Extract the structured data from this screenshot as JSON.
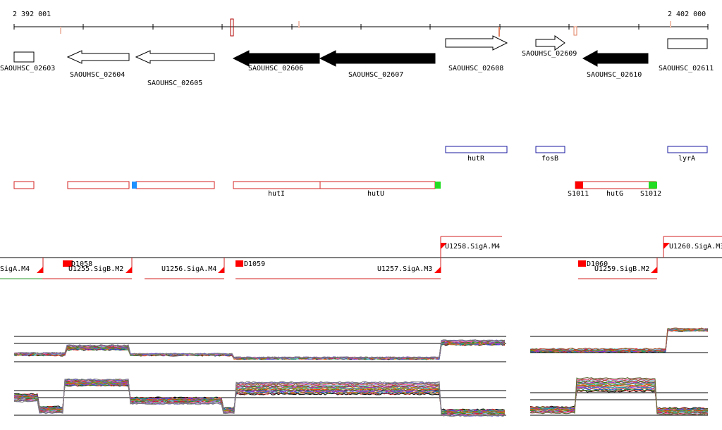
{
  "ruler": {
    "start_label": "2 392 001",
    "end_label": "2 402 000"
  },
  "genes": [
    {
      "name": "SAOUHSC_02603",
      "strand": "+",
      "fill": "white"
    },
    {
      "name": "SAOUHSC_02604",
      "strand": "-",
      "fill": "white"
    },
    {
      "name": "SAOUHSC_02605",
      "strand": "-",
      "fill": "white"
    },
    {
      "name": "SAOUHSC_02606",
      "strand": "-",
      "fill": "black"
    },
    {
      "name": "SAOUHSC_02607",
      "strand": "-",
      "fill": "black"
    },
    {
      "name": "SAOUHSC_02608",
      "strand": "+",
      "fill": "white"
    },
    {
      "name": "SAOUHSC_02609",
      "strand": "+",
      "fill": "white"
    },
    {
      "name": "SAOUHSC_02610",
      "strand": "-",
      "fill": "black"
    },
    {
      "name": "SAOUHSC_02611",
      "strand": "+",
      "fill": "white"
    }
  ],
  "gene_symbols": [
    "hutR",
    "fosB",
    "lyrA"
  ],
  "transcripts": {
    "labels": [
      "hutI",
      "hutU",
      "hutG"
    ],
    "markers": [
      "S1011",
      "S1012"
    ]
  },
  "promoters": {
    "labels": [
      ".SigA.M4",
      "U1255.SigB.M2",
      "U1256.SigA.M4",
      "U1257.SigA.M3",
      "U1258.SigA.M4",
      "U1259.SigB.M2",
      "U1260.SigA.M3"
    ],
    "sites": [
      "D1058",
      "D1059",
      "D1060"
    ]
  },
  "colors": {
    "transcript": "#d42020",
    "symbol_box": "#1a1aa0",
    "marker_red": "#ff0000",
    "marker_green": "#22dd22",
    "marker_blue": "#1e90ff"
  }
}
